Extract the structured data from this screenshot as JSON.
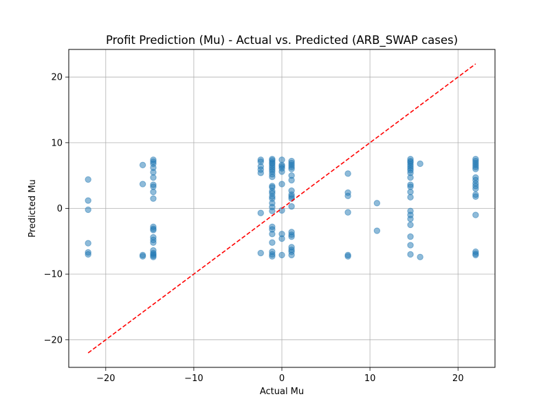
{
  "chart_data": {
    "type": "scatter",
    "title": "Profit Prediction (Mu) - Actual vs. Predicted (ARB_SWAP cases)",
    "xlabel": "Actual Mu",
    "ylabel": "Predicted Mu",
    "xlim": [
      -24.2,
      24.2
    ],
    "ylim": [
      -24.2,
      24.2
    ],
    "xticks": [
      -20,
      -10,
      0,
      10,
      20
    ],
    "yticks": [
      -20,
      -10,
      0,
      10,
      20
    ],
    "xtick_labels": [
      "−20",
      "−10",
      "0",
      "10",
      "20"
    ],
    "ytick_labels": [
      "−20",
      "−10",
      "0",
      "10",
      "20"
    ],
    "grid": true,
    "marker_color": "#1f77b4",
    "reference_line": {
      "style": "dashed",
      "color": "#ff0000",
      "from": [
        -22,
        -22
      ],
      "to": [
        22,
        22
      ]
    },
    "series": [
      {
        "points": [
          [
            -22,
            4.4
          ],
          [
            -22,
            1.2
          ],
          [
            -22,
            -0.2
          ],
          [
            -22,
            -5.3
          ],
          [
            -22,
            -6.7
          ],
          [
            -22,
            -7.0
          ],
          [
            -15.8,
            6.6
          ],
          [
            -15.8,
            3.7
          ],
          [
            -15.8,
            -7.1
          ],
          [
            -15.8,
            -7.3
          ],
          [
            -14.6,
            7.4
          ],
          [
            -14.6,
            7.1
          ],
          [
            -14.6,
            6.8
          ],
          [
            -14.6,
            6.2
          ],
          [
            -14.6,
            5.5
          ],
          [
            -14.6,
            4.7
          ],
          [
            -14.6,
            3.6
          ],
          [
            -14.6,
            3.3
          ],
          [
            -14.6,
            2.5
          ],
          [
            -14.6,
            1.5
          ],
          [
            -14.6,
            -2.8
          ],
          [
            -14.6,
            -3.1
          ],
          [
            -14.6,
            -3.3
          ],
          [
            -14.6,
            -4.4
          ],
          [
            -14.6,
            -4.8
          ],
          [
            -14.6,
            -5.2
          ],
          [
            -14.6,
            -6.4
          ],
          [
            -14.6,
            -6.8
          ],
          [
            -14.6,
            -7.0
          ],
          [
            -14.6,
            -7.2
          ],
          [
            -14.6,
            -7.4
          ],
          [
            -2.4,
            7.4
          ],
          [
            -2.4,
            7.1
          ],
          [
            -2.4,
            6.4
          ],
          [
            -2.4,
            5.9
          ],
          [
            -2.4,
            5.4
          ],
          [
            -2.4,
            -0.7
          ],
          [
            -2.4,
            -6.8
          ],
          [
            -1.1,
            7.5
          ],
          [
            -1.1,
            7.3
          ],
          [
            -1.1,
            7.0
          ],
          [
            -1.1,
            6.8
          ],
          [
            -1.1,
            6.5
          ],
          [
            -1.1,
            6.2
          ],
          [
            -1.1,
            5.9
          ],
          [
            -1.1,
            5.6
          ],
          [
            -1.1,
            5.2
          ],
          [
            -1.1,
            4.8
          ],
          [
            -1.1,
            3.4
          ],
          [
            -1.1,
            3.2
          ],
          [
            -1.1,
            2.6
          ],
          [
            -1.1,
            2.3
          ],
          [
            -1.1,
            1.8
          ],
          [
            -1.1,
            1.5
          ],
          [
            -1.1,
            0.8
          ],
          [
            -1.1,
            0.2
          ],
          [
            -1.1,
            -0.4
          ],
          [
            -1.1,
            -2.8
          ],
          [
            -1.1,
            -3.2
          ],
          [
            -1.1,
            -3.9
          ],
          [
            -1.1,
            -5.2
          ],
          [
            -1.1,
            -6.6
          ],
          [
            -1.1,
            -7.0
          ],
          [
            -1.1,
            -7.3
          ],
          [
            0.0,
            7.4
          ],
          [
            0.0,
            6.6
          ],
          [
            0.0,
            6.4
          ],
          [
            0.0,
            6.1
          ],
          [
            0.0,
            5.6
          ],
          [
            0.0,
            3.7
          ],
          [
            0.0,
            -0.3
          ],
          [
            0.0,
            -3.9
          ],
          [
            0.0,
            -4.6
          ],
          [
            0.0,
            -7.1
          ],
          [
            1.1,
            7.2
          ],
          [
            1.1,
            6.9
          ],
          [
            1.1,
            6.6
          ],
          [
            1.1,
            6.3
          ],
          [
            1.1,
            6.0
          ],
          [
            1.1,
            5.0
          ],
          [
            1.1,
            4.3
          ],
          [
            1.1,
            2.7
          ],
          [
            1.1,
            2.1
          ],
          [
            1.1,
            1.8
          ],
          [
            1.1,
            1.5
          ],
          [
            1.1,
            0.3
          ],
          [
            1.1,
            -3.6
          ],
          [
            1.1,
            -4.0
          ],
          [
            1.1,
            -4.3
          ],
          [
            1.1,
            -5.9
          ],
          [
            1.1,
            -6.3
          ],
          [
            1.1,
            -6.6
          ],
          [
            1.1,
            -7.1
          ],
          [
            7.5,
            5.3
          ],
          [
            7.5,
            2.4
          ],
          [
            7.5,
            1.9
          ],
          [
            7.5,
            -0.6
          ],
          [
            7.5,
            -7.1
          ],
          [
            7.5,
            -7.3
          ],
          [
            10.8,
            0.8
          ],
          [
            10.8,
            -3.4
          ],
          [
            14.6,
            7.5
          ],
          [
            14.6,
            7.2
          ],
          [
            14.6,
            7.0
          ],
          [
            14.6,
            6.7
          ],
          [
            14.6,
            6.4
          ],
          [
            14.6,
            6.1
          ],
          [
            14.6,
            5.8
          ],
          [
            14.6,
            5.4
          ],
          [
            14.6,
            4.7
          ],
          [
            14.6,
            3.6
          ],
          [
            14.6,
            3.3
          ],
          [
            14.6,
            2.5
          ],
          [
            14.6,
            1.7
          ],
          [
            14.6,
            -0.4
          ],
          [
            14.6,
            -1.0
          ],
          [
            14.6,
            -1.6
          ],
          [
            14.6,
            -2.5
          ],
          [
            14.6,
            -4.3
          ],
          [
            14.6,
            -5.6
          ],
          [
            14.6,
            -7.0
          ],
          [
            15.7,
            6.8
          ],
          [
            15.7,
            -7.4
          ],
          [
            22,
            7.5
          ],
          [
            22,
            7.2
          ],
          [
            22,
            6.9
          ],
          [
            22,
            6.6
          ],
          [
            22,
            6.3
          ],
          [
            22,
            6.0
          ],
          [
            22,
            4.7
          ],
          [
            22,
            4.3
          ],
          [
            22,
            3.8
          ],
          [
            22,
            3.4
          ],
          [
            22,
            3.0
          ],
          [
            22,
            2.1
          ],
          [
            22,
            1.8
          ],
          [
            22,
            -1.0
          ],
          [
            22,
            -6.6
          ],
          [
            22,
            -6.9
          ],
          [
            22,
            -7.1
          ]
        ]
      }
    ]
  }
}
